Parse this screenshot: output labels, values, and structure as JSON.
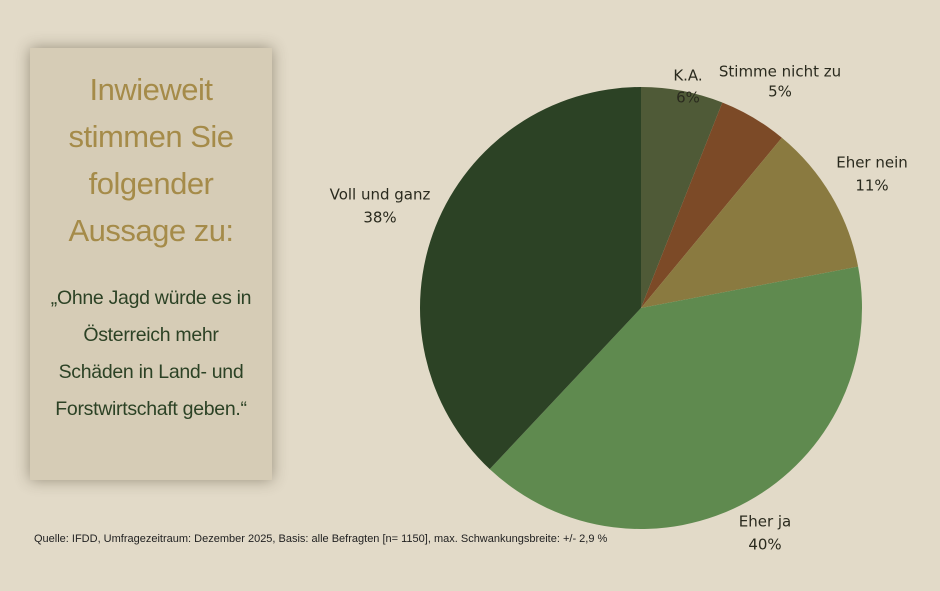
{
  "chart_data": {
    "type": "pie",
    "title": "Inwieweit stimmen Sie folgender Aussage zu:",
    "subtitle": "„Ohne Jagd würde es in Österreich mehr Schäden in Land- und Forstwirtschaft geben.“",
    "categories": [
      "K.A.",
      "Stimme nicht zu",
      "Eher nein",
      "Eher ja",
      "Voll und ganz"
    ],
    "values": [
      6,
      5,
      11,
      40,
      38
    ],
    "value_labels": [
      "6%",
      "5%",
      "11%",
      "40%",
      "38%"
    ],
    "colors": [
      "#4f5a37",
      "#7c4a27",
      "#8a7a40",
      "#5f8a4f",
      "#2c4225"
    ],
    "source": "Quelle: IFDD, Umfragezeitraum: Dezember 2025, Basis: alle Befragten [n= 1150], max. Schwankungsbreite: +/- 2,9 %"
  }
}
